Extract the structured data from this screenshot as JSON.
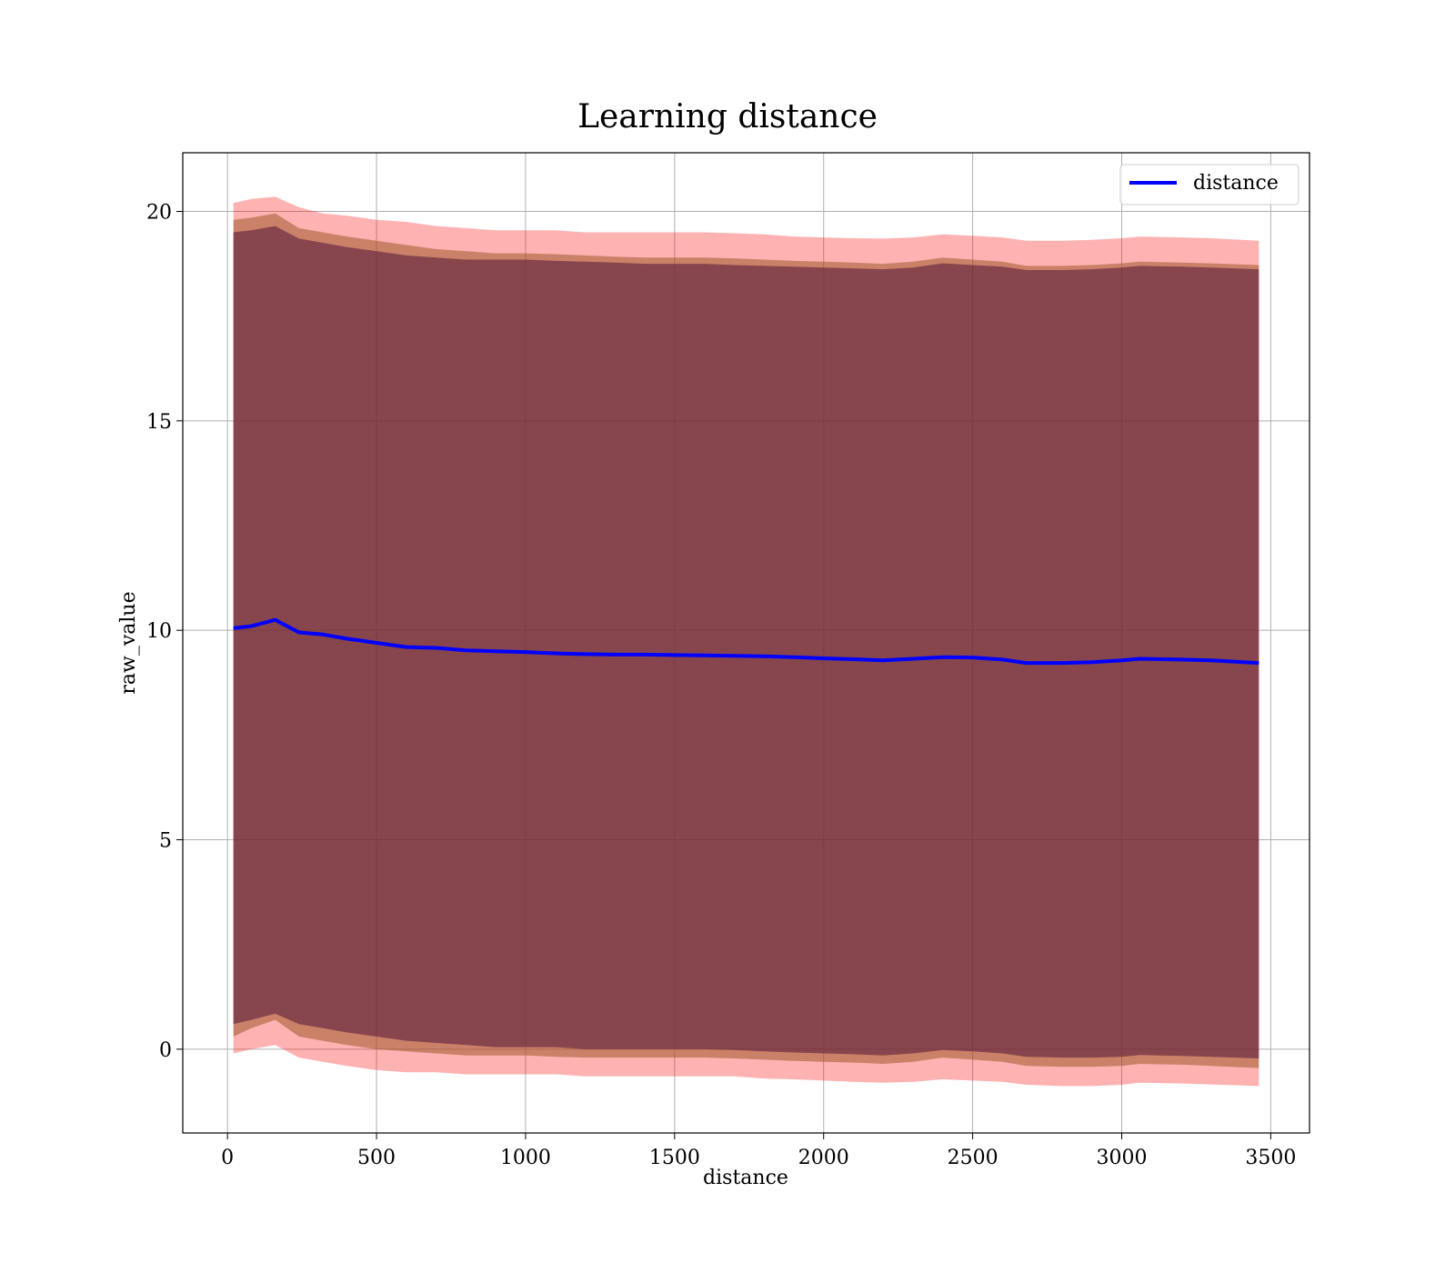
{
  "chart_data": {
    "type": "area",
    "title": "Learning distance",
    "xlabel": "distance",
    "ylabel": "raw_value",
    "xlim": [
      -150,
      3630
    ],
    "ylim": [
      -2,
      21.4
    ],
    "xticks": [
      0,
      500,
      1000,
      1500,
      2000,
      2500,
      3000,
      3500
    ],
    "yticks": [
      0,
      5,
      10,
      15,
      20
    ],
    "grid": true,
    "legend": {
      "placement": "top-right",
      "entries": [
        "distance"
      ]
    },
    "colors": {
      "line": "#0000ff",
      "band_outer": "#ff0000",
      "band_mid": "#a05a2c",
      "band_inner": "#5a1e3c",
      "grid": "#b0b0b0"
    },
    "x": [
      20,
      80,
      160,
      240,
      320,
      400,
      500,
      600,
      700,
      800,
      900,
      1000,
      1100,
      1200,
      1300,
      1400,
      1500,
      1600,
      1700,
      1800,
      1900,
      2000,
      2100,
      2200,
      2300,
      2400,
      2500,
      2600,
      2680,
      2800,
      2900,
      3000,
      3060,
      3200,
      3300,
      3460
    ],
    "series": [
      {
        "name": "distance",
        "values": [
          10.05,
          10.1,
          10.25,
          9.95,
          9.9,
          9.8,
          9.7,
          9.6,
          9.58,
          9.52,
          9.5,
          9.48,
          9.45,
          9.43,
          9.42,
          9.42,
          9.41,
          9.4,
          9.39,
          9.38,
          9.36,
          9.33,
          9.31,
          9.28,
          9.32,
          9.36,
          9.35,
          9.3,
          9.22,
          9.22,
          9.24,
          9.28,
          9.32,
          9.3,
          9.28,
          9.22
        ]
      }
    ],
    "bands": [
      {
        "role": "outer",
        "upper": [
          20.2,
          20.3,
          20.35,
          20.1,
          19.95,
          19.9,
          19.8,
          19.75,
          19.65,
          19.6,
          19.55,
          19.55,
          19.55,
          19.5,
          19.5,
          19.5,
          19.5,
          19.5,
          19.48,
          19.45,
          19.4,
          19.38,
          19.36,
          19.35,
          19.38,
          19.45,
          19.42,
          19.38,
          19.3,
          19.3,
          19.32,
          19.36,
          19.4,
          19.38,
          19.36,
          19.3
        ],
        "lower": [
          -0.1,
          0.0,
          0.1,
          -0.2,
          -0.3,
          -0.4,
          -0.5,
          -0.55,
          -0.55,
          -0.6,
          -0.6,
          -0.6,
          -0.6,
          -0.65,
          -0.65,
          -0.65,
          -0.65,
          -0.65,
          -0.65,
          -0.7,
          -0.72,
          -0.75,
          -0.78,
          -0.8,
          -0.78,
          -0.72,
          -0.75,
          -0.78,
          -0.85,
          -0.88,
          -0.88,
          -0.85,
          -0.8,
          -0.82,
          -0.84,
          -0.88
        ]
      },
      {
        "role": "middle",
        "upper": [
          19.8,
          19.85,
          19.95,
          19.6,
          19.5,
          19.4,
          19.3,
          19.2,
          19.1,
          19.05,
          19.0,
          19.0,
          18.98,
          18.95,
          18.92,
          18.9,
          18.9,
          18.9,
          18.88,
          18.85,
          18.82,
          18.8,
          18.78,
          18.75,
          18.8,
          18.9,
          18.85,
          18.8,
          18.7,
          18.7,
          18.72,
          18.76,
          18.8,
          18.78,
          18.76,
          18.72
        ],
        "lower": [
          0.3,
          0.5,
          0.7,
          0.3,
          0.2,
          0.1,
          0.0,
          -0.05,
          -0.1,
          -0.15,
          -0.15,
          -0.15,
          -0.18,
          -0.2,
          -0.2,
          -0.2,
          -0.2,
          -0.2,
          -0.22,
          -0.25,
          -0.28,
          -0.3,
          -0.32,
          -0.35,
          -0.3,
          -0.2,
          -0.25,
          -0.3,
          -0.4,
          -0.42,
          -0.42,
          -0.4,
          -0.35,
          -0.37,
          -0.4,
          -0.45
        ]
      },
      {
        "role": "inner",
        "upper": [
          19.5,
          19.55,
          19.65,
          19.35,
          19.25,
          19.15,
          19.05,
          18.95,
          18.9,
          18.85,
          18.85,
          18.85,
          18.82,
          18.8,
          18.78,
          18.75,
          18.75,
          18.75,
          18.72,
          18.7,
          18.68,
          18.66,
          18.64,
          18.62,
          18.66,
          18.76,
          18.72,
          18.68,
          18.6,
          18.6,
          18.62,
          18.66,
          18.7,
          18.68,
          18.66,
          18.62
        ],
        "lower": [
          0.6,
          0.7,
          0.85,
          0.6,
          0.5,
          0.4,
          0.3,
          0.2,
          0.15,
          0.1,
          0.05,
          0.05,
          0.05,
          0.0,
          0.0,
          0.0,
          0.0,
          0.0,
          -0.02,
          -0.05,
          -0.08,
          -0.1,
          -0.12,
          -0.15,
          -0.1,
          -0.02,
          -0.05,
          -0.1,
          -0.18,
          -0.2,
          -0.2,
          -0.18,
          -0.14,
          -0.16,
          -0.18,
          -0.22
        ]
      }
    ]
  }
}
